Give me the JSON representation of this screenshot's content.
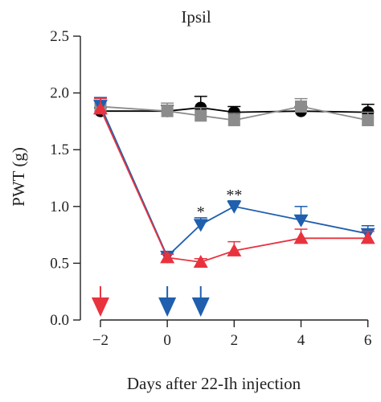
{
  "chart_data": {
    "type": "line",
    "title": "Ipsil",
    "xlabel": "Days after 22-Ih injection",
    "ylabel": "PWT (g)",
    "xlim": [
      -2.6,
      6.2
    ],
    "ylim": [
      0,
      2.5
    ],
    "xticks": [
      -2,
      0,
      2,
      4,
      6
    ],
    "xtick_labels": [
      "−2",
      "0",
      "2",
      "4",
      "6"
    ],
    "yticks": [
      0.0,
      0.5,
      1.0,
      1.5,
      2.0,
      2.5
    ],
    "ytick_labels": [
      "0.0",
      "0.5",
      "1.0",
      "1.5",
      "2.0",
      "2.5"
    ],
    "grid": false,
    "series": [
      {
        "color": "#000000",
        "marker": "circle",
        "x": [
          -2,
          0,
          1,
          2,
          4,
          6
        ],
        "y": [
          1.84,
          1.84,
          1.87,
          1.83,
          1.84,
          1.83
        ],
        "err": [
          0.03,
          0.05,
          0.1,
          0.05,
          0.04,
          0.07
        ]
      },
      {
        "color": "#8c8c8c",
        "marker": "square",
        "x": [
          -2,
          0,
          1,
          2,
          4,
          6
        ],
        "y": [
          1.88,
          1.84,
          1.8,
          1.76,
          1.88,
          1.76
        ],
        "err": [
          0.08,
          0.07,
          0.07,
          0.06,
          0.07,
          0.07
        ]
      },
      {
        "color": "#1f5fae",
        "marker": "triangle-down",
        "x": [
          -2,
          0,
          1,
          2,
          4,
          6
        ],
        "y": [
          1.89,
          0.56,
          0.84,
          1.0,
          0.88,
          0.76
        ],
        "err": [
          0.07,
          0.02,
          0.06,
          0.05,
          0.12,
          0.07
        ]
      },
      {
        "color": "#e8333f",
        "marker": "triangle-up",
        "x": [
          -2,
          0,
          1,
          2,
          4,
          6
        ],
        "y": [
          1.86,
          0.55,
          0.51,
          0.61,
          0.72,
          0.72
        ],
        "err": [
          0.09,
          0.03,
          0.03,
          0.08,
          0.08,
          0.06
        ]
      }
    ],
    "annotations": [
      {
        "text": "*",
        "x": 1,
        "y": 0.92
      },
      {
        "text": "**",
        "x": 2,
        "y": 1.07
      }
    ],
    "event_arrows": [
      {
        "x": -2,
        "color": "#e8333f"
      },
      {
        "x": 0,
        "color": "#1f5fae"
      },
      {
        "x": 1,
        "color": "#1f5fae"
      }
    ]
  }
}
